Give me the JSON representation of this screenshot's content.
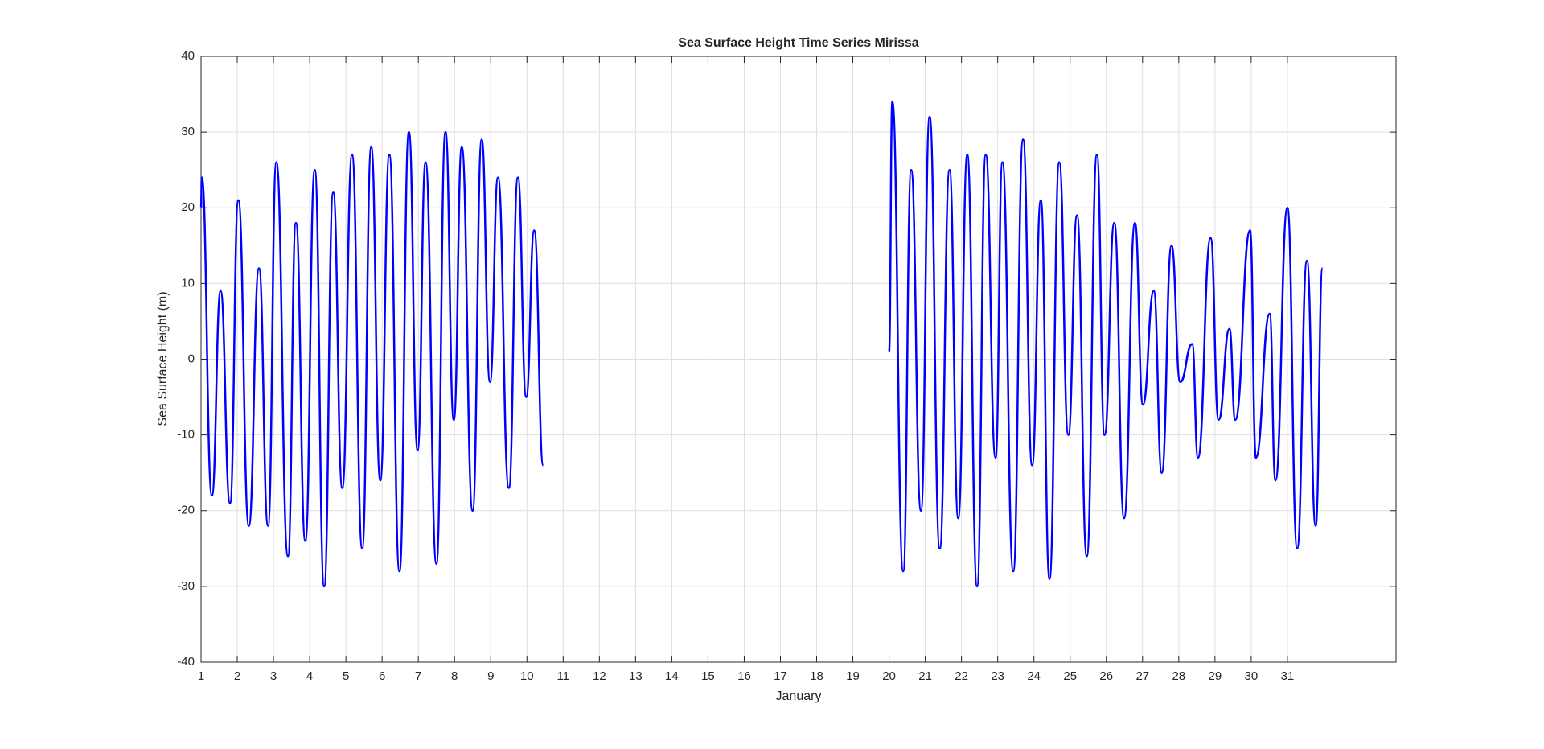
{
  "chart_data": {
    "type": "line",
    "title": "Sea Surface Height Time Series Mirissa",
    "x_label": "January",
    "y_label": "Sea Surface Height (m)",
    "xlim": [
      1,
      34
    ],
    "ylim": [
      -40,
      40
    ],
    "xticks": [
      1,
      2,
      3,
      4,
      5,
      6,
      7,
      8,
      9,
      10,
      11,
      12,
      13,
      14,
      15,
      16,
      17,
      18,
      19,
      20,
      21,
      22,
      23,
      24,
      25,
      26,
      27,
      28,
      29,
      30,
      31
    ],
    "yticks": [
      -40,
      -30,
      -20,
      -10,
      0,
      10,
      20,
      30,
      40
    ],
    "grid": true,
    "series": [
      {
        "color": "#0000ff",
        "x": [
          1.0,
          1.02,
          1.3,
          1.54,
          1.8,
          2.03,
          2.32,
          2.6,
          2.85,
          3.08,
          3.4,
          3.62,
          3.88,
          4.14,
          4.4,
          4.65,
          4.9,
          5.17,
          5.45,
          5.7,
          5.95,
          6.2,
          6.48,
          6.74,
          6.98,
          7.2,
          7.5,
          7.75,
          7.98,
          8.2,
          8.5,
          8.75,
          8.98,
          9.2,
          9.5,
          9.75,
          9.98,
          10.2,
          10.45,
          15,
          20.0,
          20.09,
          20.39,
          20.61,
          20.88,
          21.12,
          21.4,
          21.67,
          21.91,
          22.16,
          22.43,
          22.67,
          22.94,
          23.13,
          23.43,
          23.7,
          23.95,
          24.19,
          24.43,
          24.7,
          24.95,
          25.19,
          25.46,
          25.74,
          25.95,
          26.22,
          26.49,
          26.79,
          27.01,
          27.31,
          27.53,
          27.8,
          28.04,
          28.37,
          28.53,
          28.88,
          29.1,
          29.4,
          29.56,
          29.97,
          30.13,
          30.51,
          30.67,
          31.0,
          31.27,
          31.54,
          31.78,
          31.97
        ],
        "values": [
          20,
          24,
          -18,
          9,
          -19,
          21,
          -22,
          12,
          -22,
          26,
          -26,
          18,
          -24,
          25,
          -30,
          22,
          -17,
          27,
          -25,
          28,
          -16,
          27,
          -28,
          30,
          -12,
          26,
          -27,
          30,
          -8,
          28,
          -20,
          29,
          -3,
          24,
          -17,
          24,
          -5,
          17,
          -14,
          null,
          1,
          34,
          -28,
          25,
          -20,
          32,
          -25,
          25,
          -21,
          27,
          -30,
          27,
          -13,
          26,
          -28,
          29,
          -14,
          21,
          -29,
          26,
          -10,
          19,
          -26,
          27,
          -10,
          18,
          -21,
          18,
          -6,
          9,
          -15,
          15,
          -3,
          2,
          -13,
          16,
          -8,
          4,
          -8,
          17,
          -13,
          6,
          -16,
          20,
          -25,
          13,
          -22,
          12
        ]
      }
    ]
  }
}
